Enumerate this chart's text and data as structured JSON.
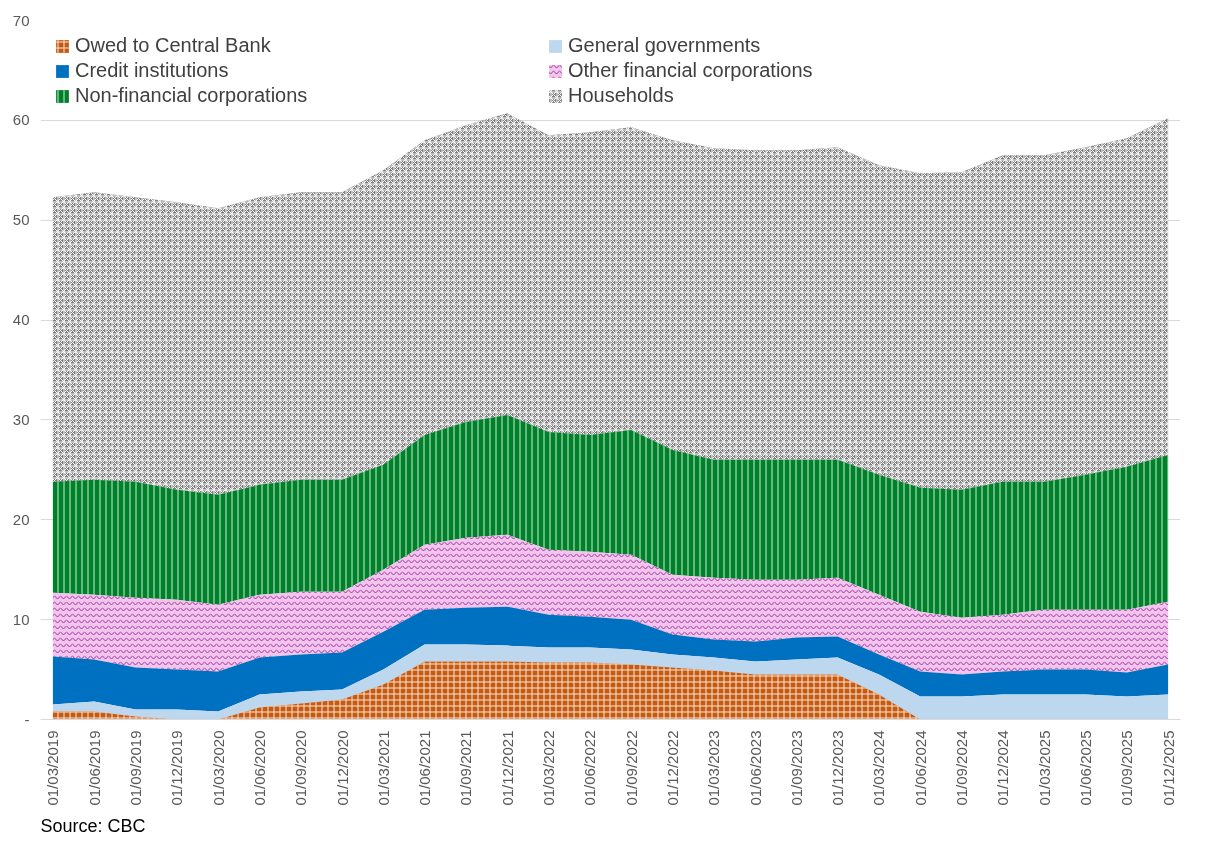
{
  "chart_data": {
    "type": "area",
    "stacked": true,
    "categories": [
      "01/03/2019",
      "01/06/2019",
      "01/09/2019",
      "01/12/2019",
      "01/03/2020",
      "01/06/2020",
      "01/09/2020",
      "01/12/2020",
      "01/03/2021",
      "01/06/2021",
      "01/09/2021",
      "01/12/2021",
      "01/03/2022",
      "01/06/2022",
      "01/09/2022",
      "01/12/2022",
      "01/03/2023",
      "01/06/2023",
      "01/09/2023",
      "01/12/2023",
      "01/03/2024",
      "01/06/2024",
      "01/09/2024",
      "01/12/2024",
      "01/03/2025",
      "01/06/2025",
      "01/09/2025",
      "01/12/2025"
    ],
    "series": [
      {
        "name": "Owed to Central Bank",
        "color": "#c55a11",
        "values": [
          0.8,
          0.8,
          0.3,
          0,
          0,
          1.2,
          1.6,
          2,
          3.5,
          5.8,
          5.8,
          5.8,
          5.7,
          5.7,
          5.5,
          5.2,
          4.9,
          4.5,
          4.5,
          4.5,
          2.5,
          0,
          0,
          0,
          0,
          0,
          0,
          0
        ]
      },
      {
        "name": "General governments",
        "color": "#bdd7ee",
        "values": [
          0.7,
          1.0,
          0.7,
          1.0,
          0.8,
          1.3,
          1.2,
          1.0,
          1.5,
          1.7,
          1.7,
          1.6,
          1.5,
          1.5,
          1.5,
          1.3,
          1.3,
          1.3,
          1.5,
          1.7,
          2.0,
          2.3,
          2.3,
          2.5,
          2.5,
          2.5,
          2.3,
          2.5
        ]
      },
      {
        "name": "Credit institutions",
        "color": "#0070c0",
        "values": [
          4.8,
          4.2,
          4.2,
          4.0,
          4.0,
          3.7,
          3.7,
          3.7,
          3.8,
          3.5,
          3.7,
          3.9,
          3.3,
          3.1,
          3.0,
          2.0,
          1.8,
          2.0,
          2.2,
          2.1,
          2.0,
          2.5,
          2.2,
          2.3,
          2.5,
          2.5,
          2.4,
          3.0
        ]
      },
      {
        "name": "Other financial corporations",
        "color": "#f2c4ee",
        "values": [
          6.4,
          6.5,
          7.0,
          7.0,
          6.7,
          6.3,
          6.3,
          6.1,
          6.2,
          6.5,
          7.0,
          7.2,
          6.5,
          6.5,
          6.5,
          6.0,
          6.2,
          6.2,
          5.8,
          5.9,
          6.0,
          6.0,
          5.7,
          5.7,
          6.0,
          6.0,
          6.3,
          6.3
        ]
      },
      {
        "name": "Non-financial corporations",
        "color": "#00802b",
        "values": [
          11.1,
          11.5,
          11.6,
          11.0,
          11.0,
          11.0,
          11.2,
          11.2,
          10.5,
          11.0,
          11.6,
          12.0,
          11.8,
          11.7,
          12.5,
          12.5,
          11.8,
          12.0,
          12.0,
          11.8,
          12.0,
          12.4,
          12.8,
          13.3,
          12.8,
          13.5,
          14.3,
          14.7
        ]
      },
      {
        "name": "Households",
        "color": "#7f7f7f",
        "values": [
          28.5,
          28.8,
          28.5,
          28.8,
          28.7,
          28.8,
          28.8,
          28.8,
          29.5,
          29.5,
          29.7,
          30.2,
          29.7,
          30.3,
          30.3,
          31.0,
          31.2,
          31.0,
          31.0,
          31.3,
          31.0,
          31.5,
          31.8,
          32.7,
          32.7,
          32.8,
          32.9,
          33.7
        ]
      }
    ],
    "ylim": [
      0,
      70
    ],
    "yticks": [
      {
        "value": 0,
        "label": "-"
      },
      10,
      20,
      30,
      40,
      50,
      60,
      70
    ],
    "grid": "y",
    "legend": "top",
    "annotations": [
      "Source: CBC"
    ]
  }
}
